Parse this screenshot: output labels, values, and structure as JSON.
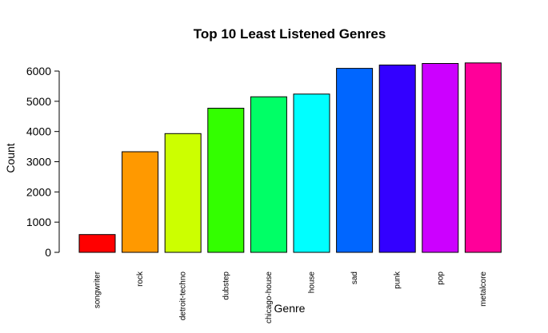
{
  "chart_data": {
    "type": "bar",
    "title": "Top 10 Least Listened Genres",
    "xlabel": "Genre",
    "ylabel": "Count",
    "ylim": [
      0,
      6300
    ],
    "yticks": [
      0,
      1000,
      2000,
      3000,
      4000,
      5000,
      6000
    ],
    "categories": [
      "songwriter",
      "rock",
      "detroit-techno",
      "dubstep",
      "chicago-house",
      "house",
      "sad",
      "punk",
      "pop",
      "metalcore"
    ],
    "values": [
      590,
      3330,
      3930,
      4770,
      5150,
      5240,
      6090,
      6200,
      6250,
      6270
    ],
    "colors": [
      "#FF0000",
      "#FF9900",
      "#CCFF00",
      "#33FF00",
      "#00FF66",
      "#00FFFF",
      "#0066FF",
      "#3300FF",
      "#CC00FF",
      "#FF0099"
    ],
    "grid": false,
    "legend": "none"
  }
}
